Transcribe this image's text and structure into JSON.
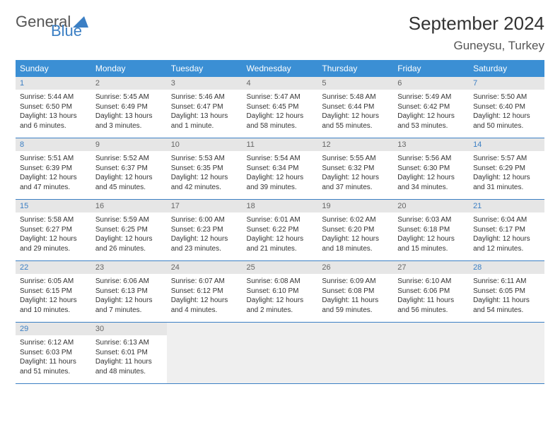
{
  "logo": {
    "text1": "General",
    "text2": "Blue"
  },
  "header": {
    "month_title": "September 2024",
    "location": "Guneysu, Turkey"
  },
  "colors": {
    "header_bg": "#3b8fd4",
    "header_fg": "#ffffff",
    "daynum_bg": "#e6e6e6",
    "daynum_fg": "#666666",
    "weekend_fg": "#3b7fc4",
    "cell_border": "#3b7fc4",
    "blank_bg": "#efefef"
  },
  "weekdays": [
    "Sunday",
    "Monday",
    "Tuesday",
    "Wednesday",
    "Thursday",
    "Friday",
    "Saturday"
  ],
  "weeks": [
    [
      {
        "n": "1",
        "sunrise": "Sunrise: 5:44 AM",
        "sunset": "Sunset: 6:50 PM",
        "day1": "Daylight: 13 hours",
        "day2": "and 6 minutes."
      },
      {
        "n": "2",
        "sunrise": "Sunrise: 5:45 AM",
        "sunset": "Sunset: 6:49 PM",
        "day1": "Daylight: 13 hours",
        "day2": "and 3 minutes."
      },
      {
        "n": "3",
        "sunrise": "Sunrise: 5:46 AM",
        "sunset": "Sunset: 6:47 PM",
        "day1": "Daylight: 13 hours",
        "day2": "and 1 minute."
      },
      {
        "n": "4",
        "sunrise": "Sunrise: 5:47 AM",
        "sunset": "Sunset: 6:45 PM",
        "day1": "Daylight: 12 hours",
        "day2": "and 58 minutes."
      },
      {
        "n": "5",
        "sunrise": "Sunrise: 5:48 AM",
        "sunset": "Sunset: 6:44 PM",
        "day1": "Daylight: 12 hours",
        "day2": "and 55 minutes."
      },
      {
        "n": "6",
        "sunrise": "Sunrise: 5:49 AM",
        "sunset": "Sunset: 6:42 PM",
        "day1": "Daylight: 12 hours",
        "day2": "and 53 minutes."
      },
      {
        "n": "7",
        "sunrise": "Sunrise: 5:50 AM",
        "sunset": "Sunset: 6:40 PM",
        "day1": "Daylight: 12 hours",
        "day2": "and 50 minutes."
      }
    ],
    [
      {
        "n": "8",
        "sunrise": "Sunrise: 5:51 AM",
        "sunset": "Sunset: 6:39 PM",
        "day1": "Daylight: 12 hours",
        "day2": "and 47 minutes."
      },
      {
        "n": "9",
        "sunrise": "Sunrise: 5:52 AM",
        "sunset": "Sunset: 6:37 PM",
        "day1": "Daylight: 12 hours",
        "day2": "and 45 minutes."
      },
      {
        "n": "10",
        "sunrise": "Sunrise: 5:53 AM",
        "sunset": "Sunset: 6:35 PM",
        "day1": "Daylight: 12 hours",
        "day2": "and 42 minutes."
      },
      {
        "n": "11",
        "sunrise": "Sunrise: 5:54 AM",
        "sunset": "Sunset: 6:34 PM",
        "day1": "Daylight: 12 hours",
        "day2": "and 39 minutes."
      },
      {
        "n": "12",
        "sunrise": "Sunrise: 5:55 AM",
        "sunset": "Sunset: 6:32 PM",
        "day1": "Daylight: 12 hours",
        "day2": "and 37 minutes."
      },
      {
        "n": "13",
        "sunrise": "Sunrise: 5:56 AM",
        "sunset": "Sunset: 6:30 PM",
        "day1": "Daylight: 12 hours",
        "day2": "and 34 minutes."
      },
      {
        "n": "14",
        "sunrise": "Sunrise: 5:57 AM",
        "sunset": "Sunset: 6:29 PM",
        "day1": "Daylight: 12 hours",
        "day2": "and 31 minutes."
      }
    ],
    [
      {
        "n": "15",
        "sunrise": "Sunrise: 5:58 AM",
        "sunset": "Sunset: 6:27 PM",
        "day1": "Daylight: 12 hours",
        "day2": "and 29 minutes."
      },
      {
        "n": "16",
        "sunrise": "Sunrise: 5:59 AM",
        "sunset": "Sunset: 6:25 PM",
        "day1": "Daylight: 12 hours",
        "day2": "and 26 minutes."
      },
      {
        "n": "17",
        "sunrise": "Sunrise: 6:00 AM",
        "sunset": "Sunset: 6:23 PM",
        "day1": "Daylight: 12 hours",
        "day2": "and 23 minutes."
      },
      {
        "n": "18",
        "sunrise": "Sunrise: 6:01 AM",
        "sunset": "Sunset: 6:22 PM",
        "day1": "Daylight: 12 hours",
        "day2": "and 21 minutes."
      },
      {
        "n": "19",
        "sunrise": "Sunrise: 6:02 AM",
        "sunset": "Sunset: 6:20 PM",
        "day1": "Daylight: 12 hours",
        "day2": "and 18 minutes."
      },
      {
        "n": "20",
        "sunrise": "Sunrise: 6:03 AM",
        "sunset": "Sunset: 6:18 PM",
        "day1": "Daylight: 12 hours",
        "day2": "and 15 minutes."
      },
      {
        "n": "21",
        "sunrise": "Sunrise: 6:04 AM",
        "sunset": "Sunset: 6:17 PM",
        "day1": "Daylight: 12 hours",
        "day2": "and 12 minutes."
      }
    ],
    [
      {
        "n": "22",
        "sunrise": "Sunrise: 6:05 AM",
        "sunset": "Sunset: 6:15 PM",
        "day1": "Daylight: 12 hours",
        "day2": "and 10 minutes."
      },
      {
        "n": "23",
        "sunrise": "Sunrise: 6:06 AM",
        "sunset": "Sunset: 6:13 PM",
        "day1": "Daylight: 12 hours",
        "day2": "and 7 minutes."
      },
      {
        "n": "24",
        "sunrise": "Sunrise: 6:07 AM",
        "sunset": "Sunset: 6:12 PM",
        "day1": "Daylight: 12 hours",
        "day2": "and 4 minutes."
      },
      {
        "n": "25",
        "sunrise": "Sunrise: 6:08 AM",
        "sunset": "Sunset: 6:10 PM",
        "day1": "Daylight: 12 hours",
        "day2": "and 2 minutes."
      },
      {
        "n": "26",
        "sunrise": "Sunrise: 6:09 AM",
        "sunset": "Sunset: 6:08 PM",
        "day1": "Daylight: 11 hours",
        "day2": "and 59 minutes."
      },
      {
        "n": "27",
        "sunrise": "Sunrise: 6:10 AM",
        "sunset": "Sunset: 6:06 PM",
        "day1": "Daylight: 11 hours",
        "day2": "and 56 minutes."
      },
      {
        "n": "28",
        "sunrise": "Sunrise: 6:11 AM",
        "sunset": "Sunset: 6:05 PM",
        "day1": "Daylight: 11 hours",
        "day2": "and 54 minutes."
      }
    ],
    [
      {
        "n": "29",
        "sunrise": "Sunrise: 6:12 AM",
        "sunset": "Sunset: 6:03 PM",
        "day1": "Daylight: 11 hours",
        "day2": "and 51 minutes."
      },
      {
        "n": "30",
        "sunrise": "Sunrise: 6:13 AM",
        "sunset": "Sunset: 6:01 PM",
        "day1": "Daylight: 11 hours",
        "day2": "and 48 minutes."
      },
      null,
      null,
      null,
      null,
      null
    ]
  ]
}
